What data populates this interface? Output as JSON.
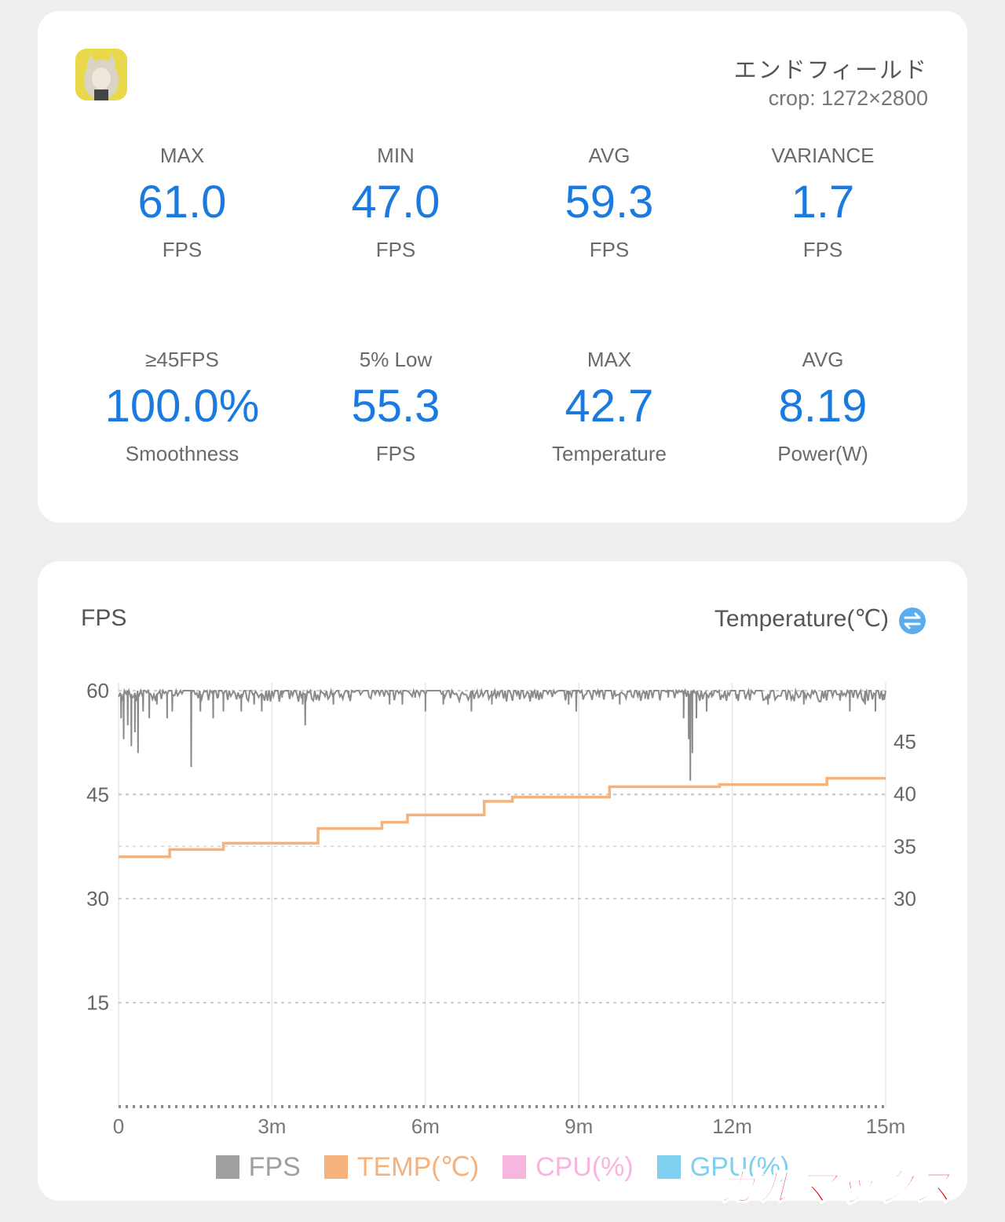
{
  "header": {
    "game_title": "エンドフィールド",
    "crop_info": "crop: 1272×2800"
  },
  "stats": [
    {
      "label": "MAX",
      "value": "61.0",
      "unit": "FPS"
    },
    {
      "label": "MIN",
      "value": "47.0",
      "unit": "FPS"
    },
    {
      "label": "AVG",
      "value": "59.3",
      "unit": "FPS"
    },
    {
      "label": "VARIANCE",
      "value": "1.7",
      "unit": "FPS"
    },
    {
      "label": "≥45FPS",
      "value": "100.0%",
      "unit": "Smoothness"
    },
    {
      "label": "5% Low",
      "value": "55.3",
      "unit": "FPS"
    },
    {
      "label": "MAX",
      "value": "42.7",
      "unit": "Temperature"
    },
    {
      "label": "AVG",
      "value": "8.19",
      "unit": "Power(W)"
    }
  ],
  "chart_header": {
    "left_title": "FPS",
    "right_title": "Temperature(℃)",
    "swap_icon": "swap-axis-icon"
  },
  "legend": [
    {
      "label": "FPS",
      "color": "#a0a0a0"
    },
    {
      "label": "TEMP(℃)",
      "color": "#f6b27a"
    },
    {
      "label": "CPU(%)",
      "color": "#f7b6dd"
    },
    {
      "label": "GPU(%)",
      "color": "#7fcff0"
    }
  ],
  "watermark": "ガルマックス",
  "colors": {
    "accent": "#1a7ae0",
    "fps_line": "#8a8a8a",
    "temp_line": "#f6b27a"
  },
  "chart_data": {
    "type": "line",
    "x_ticks": [
      "0",
      "3m",
      "6m",
      "9m",
      "12m",
      "15m"
    ],
    "x_range_minutes": [
      0,
      15
    ],
    "y_left": {
      "label": "FPS",
      "ticks": [
        "15",
        "30",
        "45",
        "60"
      ],
      "range": [
        0,
        60
      ]
    },
    "y_right": {
      "label": "Temperature(℃)",
      "ticks": [
        "30",
        "35",
        "40",
        "45"
      ],
      "range": [
        30,
        45
      ]
    },
    "series": [
      {
        "name": "FPS",
        "axis": "left",
        "baseline": 60,
        "dips": [
          [
            0.05,
            56
          ],
          [
            0.1,
            53
          ],
          [
            0.18,
            55
          ],
          [
            0.25,
            52
          ],
          [
            0.32,
            54
          ],
          [
            0.38,
            51
          ],
          [
            0.48,
            57
          ],
          [
            0.6,
            56
          ],
          [
            0.75,
            58
          ],
          [
            0.95,
            56
          ],
          [
            1.05,
            57
          ],
          [
            1.42,
            49
          ],
          [
            1.6,
            57
          ],
          [
            1.85,
            56
          ],
          [
            2.05,
            57
          ],
          [
            1.95,
            59
          ],
          [
            2.4,
            57
          ],
          [
            2.65,
            58
          ],
          [
            2.8,
            57
          ],
          [
            3.2,
            59
          ],
          [
            3.6,
            58
          ],
          [
            3.65,
            55
          ],
          [
            4.2,
            58
          ],
          [
            4.5,
            59
          ],
          [
            5.3,
            58
          ],
          [
            5.55,
            58
          ],
          [
            5.8,
            59
          ],
          [
            6.0,
            57
          ],
          [
            6.35,
            58
          ],
          [
            6.9,
            57
          ],
          [
            7.3,
            58
          ],
          [
            8.1,
            59
          ],
          [
            8.8,
            58
          ],
          [
            8.95,
            57
          ],
          [
            9.4,
            59
          ],
          [
            9.8,
            58
          ],
          [
            10.3,
            59
          ],
          [
            10.75,
            59
          ],
          [
            11.05,
            56
          ],
          [
            11.15,
            53
          ],
          [
            11.18,
            47
          ],
          [
            11.22,
            51
          ],
          [
            11.3,
            56
          ],
          [
            11.5,
            57
          ],
          [
            11.6,
            59
          ],
          [
            12.1,
            59
          ],
          [
            12.7,
            58
          ],
          [
            13.4,
            58
          ],
          [
            14.1,
            59
          ],
          [
            14.3,
            57
          ],
          [
            14.6,
            58
          ],
          [
            14.8,
            57
          ],
          [
            14.95,
            59
          ]
        ]
      },
      {
        "name": "TEMP(℃)",
        "axis": "right",
        "steps": [
          [
            0,
            34.0
          ],
          [
            1.0,
            34.7
          ],
          [
            2.05,
            35.3
          ],
          [
            3.9,
            36.7
          ],
          [
            5.15,
            37.3
          ],
          [
            5.65,
            38.0
          ],
          [
            7.15,
            39.3
          ],
          [
            7.7,
            39.7
          ],
          [
            9.6,
            40.7
          ],
          [
            11.75,
            40.9
          ],
          [
            13.85,
            41.5
          ],
          [
            15,
            41.5
          ]
        ]
      }
    ]
  }
}
